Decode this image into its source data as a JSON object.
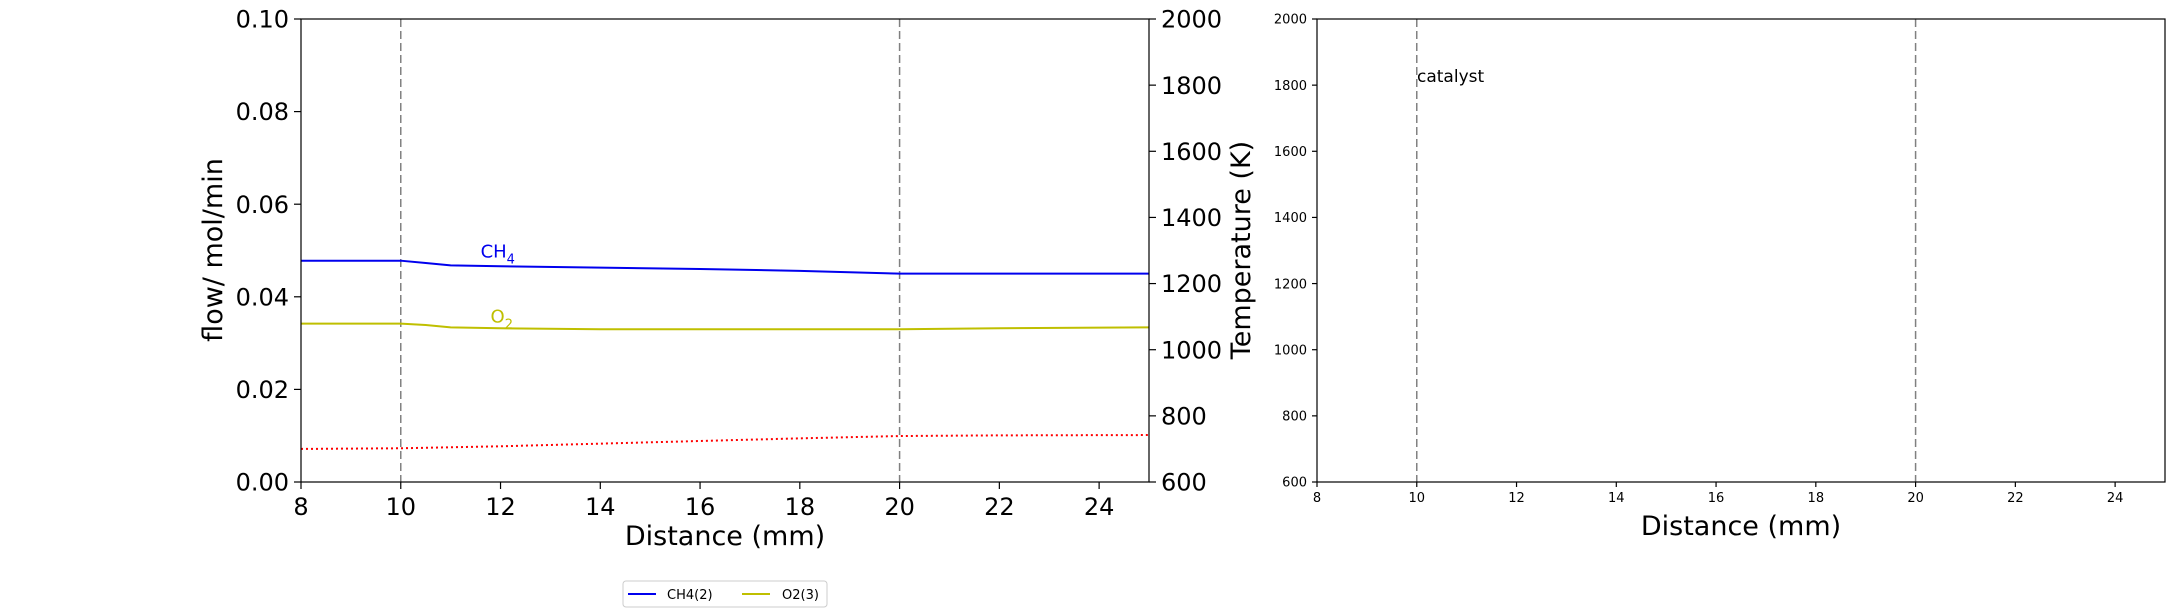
{
  "chart_data": [
    {
      "type": "line",
      "xlabel": "Distance (mm)",
      "ylabel": "flow/ mol/min",
      "y2label": "Temperature (K)",
      "xlim": [
        8,
        25
      ],
      "ylim": [
        0,
        0.1
      ],
      "y2lim": [
        600,
        2000
      ],
      "xticks": [
        "8",
        "10",
        "12",
        "14",
        "16",
        "18",
        "20",
        "22",
        "24"
      ],
      "yticks": [
        "0.00",
        "0.02",
        "0.04",
        "0.06",
        "0.08",
        "0.10"
      ],
      "y2ticks": [
        "600",
        "800",
        "1000",
        "1200",
        "1400",
        "1600",
        "1800",
        "2000"
      ],
      "vlines": [
        10,
        20
      ],
      "grid": false,
      "series": [
        {
          "name": "CH4(2)",
          "label": "CH",
          "label_sub": "4",
          "color": "#0000ee",
          "x": [
            8,
            10,
            10.5,
            11,
            12,
            14,
            16,
            18,
            20,
            22,
            25
          ],
          "y": [
            0.0478,
            0.0478,
            0.0473,
            0.0468,
            0.0466,
            0.0463,
            0.046,
            0.0456,
            0.045,
            0.045,
            0.045
          ]
        },
        {
          "name": "O2(3)",
          "label": "O",
          "label_sub": "2",
          "color": "#bfbf00",
          "x": [
            8,
            10,
            10.5,
            11,
            12,
            14,
            16,
            18,
            20,
            22,
            25
          ],
          "y": [
            0.0342,
            0.0342,
            0.0339,
            0.0334,
            0.0332,
            0.033,
            0.033,
            0.033,
            0.033,
            0.0332,
            0.0334
          ]
        },
        {
          "axis": "y2",
          "style": "dotted",
          "color": "#ff0000",
          "x": [
            8,
            10,
            12,
            14,
            16,
            18,
            20,
            22,
            25
          ],
          "y": [
            700,
            702,
            708,
            716,
            724,
            732,
            739,
            741,
            742
          ]
        }
      ],
      "legend": {
        "placement": "bottom-center",
        "entries": [
          {
            "label": "CH4(2)",
            "color": "#0000ee"
          },
          {
            "label": "O2(3)",
            "color": "#bfbf00"
          }
        ]
      }
    },
    {
      "type": "line",
      "xlabel": "Distance (mm)",
      "xlim": [
        8,
        25
      ],
      "ylim": [
        600,
        2000
      ],
      "xticks": [
        "8",
        "10",
        "12",
        "14",
        "16",
        "18",
        "20",
        "22",
        "24"
      ],
      "yticks": [
        "600",
        "800",
        "1000",
        "1200",
        "1400",
        "1600",
        "1800",
        "2000"
      ],
      "vlines": [
        10,
        20
      ],
      "annotation": "catalyst",
      "grid": false,
      "series": []
    }
  ]
}
